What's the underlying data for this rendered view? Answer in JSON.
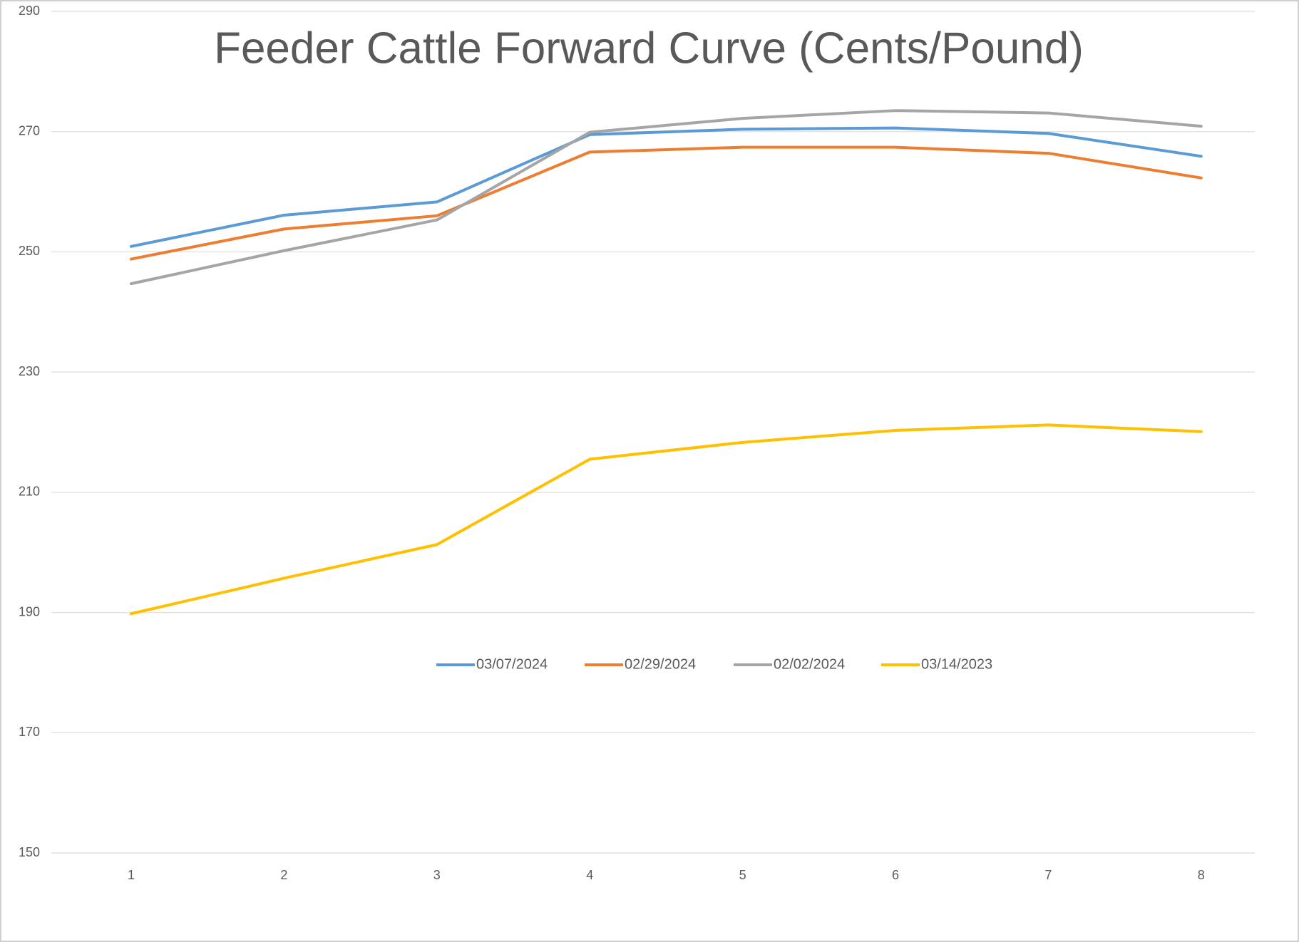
{
  "chart_data": {
    "type": "line",
    "title": "Feeder Cattle Forward Curve (Cents/Pound)",
    "categories": [
      "1",
      "2",
      "3",
      "4",
      "5",
      "6",
      "7",
      "8"
    ],
    "series": [
      {
        "name": "03/07/2024",
        "color": "#5b9bd5",
        "values": [
          250.9,
          256.1,
          258.3,
          269.5,
          270.4,
          270.6,
          269.7,
          265.9
        ]
      },
      {
        "name": "02/29/2024",
        "color": "#ed7d31",
        "values": [
          248.8,
          253.8,
          256.0,
          266.6,
          267.4,
          267.4,
          266.4,
          262.3
        ]
      },
      {
        "name": "02/02/2024",
        "color": "#a5a5a5",
        "values": [
          244.7,
          250.2,
          255.3,
          269.9,
          272.2,
          273.5,
          273.1,
          270.9
        ]
      },
      {
        "name": "03/14/2023",
        "color": "#ffc000",
        "values": [
          189.8,
          195.7,
          201.3,
          215.5,
          218.3,
          220.3,
          221.2,
          220.1
        ]
      }
    ],
    "ylim": [
      150,
      290
    ],
    "yticks": [
      150,
      170,
      190,
      210,
      230,
      250,
      270,
      290
    ],
    "grid": true
  }
}
